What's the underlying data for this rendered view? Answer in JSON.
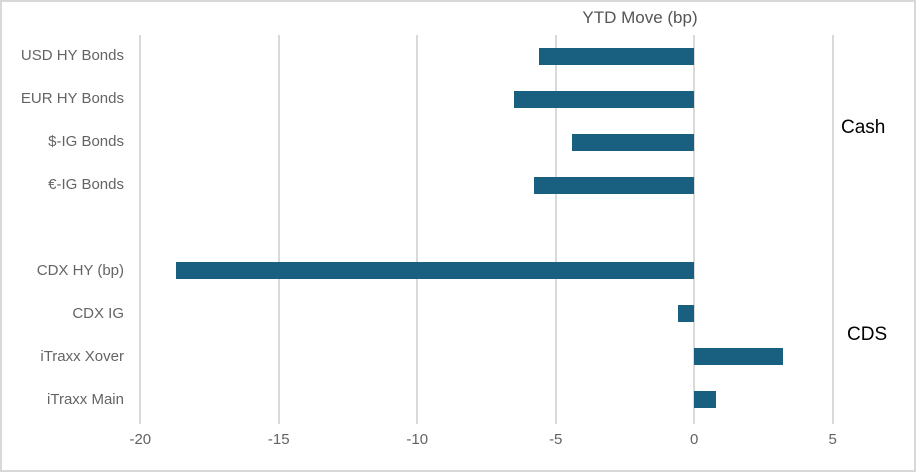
{
  "chart_data": {
    "type": "bar",
    "orientation": "horizontal",
    "title": "YTD Move (bp)",
    "xlim": [
      -20,
      5
    ],
    "x_ticks": [
      -20,
      -15,
      -10,
      -5,
      0,
      5
    ],
    "grid": true,
    "legend": false,
    "bar_color": "#185F80",
    "colors": {
      "grid": "#D9D9D9",
      "axis_text": "#636363",
      "title_text": "#555555",
      "group_label_text": "#000000",
      "border": "#D8D8D8"
    },
    "groups": [
      {
        "name": "Cash",
        "items": [
          {
            "label": "USD HY Bonds",
            "value": -5.6
          },
          {
            "label": "EUR HY Bonds",
            "value": -6.5
          },
          {
            "label": "$-IG Bonds",
            "value": -4.4
          },
          {
            "label": "€-IG Bonds",
            "value": -5.8
          }
        ]
      },
      {
        "name": "CDS",
        "items": [
          {
            "label": "CDX HY (bp)",
            "value": -18.7
          },
          {
            "label": "CDX IG",
            "value": -0.6
          },
          {
            "label": "iTraxx Xover",
            "value": 3.2
          },
          {
            "label": "iTraxx Main",
            "value": 0.8
          }
        ]
      }
    ]
  }
}
